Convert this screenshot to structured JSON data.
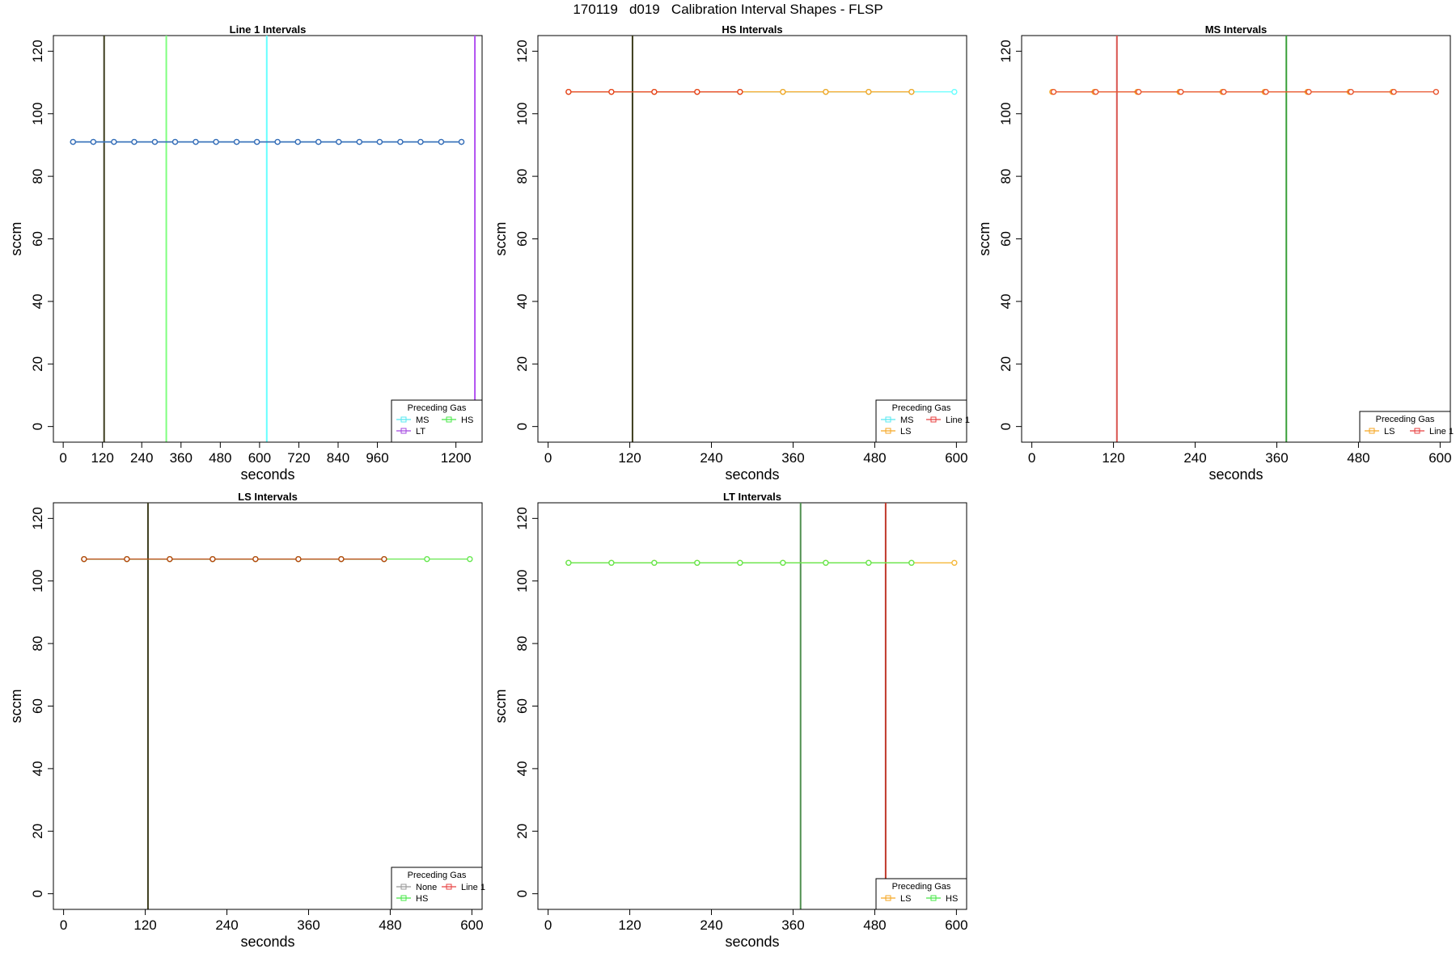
{
  "title": "170119   d019   Calibration Interval Shapes - FLSP",
  "chart_data": [
    {
      "type": "line",
      "title": "Line 1 Intervals",
      "xlabel": "seconds",
      "ylabel": "sccm",
      "xlim": [
        -30,
        1280
      ],
      "ylim": [
        -5,
        125
      ],
      "xticks": [
        0,
        120,
        240,
        360,
        480,
        600,
        720,
        840,
        960,
        1200
      ],
      "yticks": [
        0,
        20,
        40,
        60,
        80,
        100,
        120
      ],
      "vlines": [
        {
          "x": 125,
          "color": "#3d3d1e"
        },
        {
          "x": 315,
          "color": "#7fff7f"
        },
        {
          "x": 622,
          "color": "#66ffff"
        },
        {
          "x": 1258,
          "color": "#b04ff0"
        }
      ],
      "legend": {
        "title": "Preceding Gas",
        "position": "bottom-right",
        "entries": [
          {
            "label": "MS",
            "color": "#56e8f0"
          },
          {
            "label": "HS",
            "color": "#47e847"
          },
          {
            "label": "LT",
            "color": "#a347e0"
          }
        ]
      },
      "series": [
        {
          "name": "MS",
          "color": "#4fb8e0",
          "x": [
            30,
            92,
            155,
            217,
            280,
            342,
            405,
            467,
            530,
            592,
            655,
            717,
            780,
            842,
            905,
            967,
            1030,
            1092,
            1155,
            1217
          ],
          "y": [
            91,
            91,
            91,
            91,
            91,
            91,
            91,
            91,
            91,
            91,
            91,
            91,
            91,
            91,
            91,
            91,
            91,
            91,
            91,
            91
          ]
        },
        {
          "name": "HS",
          "color": "#2f7fc6",
          "x": [
            30,
            92,
            155,
            217,
            280,
            342,
            405,
            467,
            530,
            592,
            655,
            717,
            780,
            842,
            905,
            967,
            1030,
            1092,
            1155,
            1217
          ],
          "y": [
            91,
            91,
            91,
            91,
            91,
            91,
            91,
            91,
            91,
            91,
            91,
            91,
            91,
            91,
            91,
            91,
            91,
            91,
            91,
            91
          ]
        },
        {
          "name": "LT",
          "color": "#3a6fb8",
          "x": [
            30,
            92,
            155,
            217,
            280,
            342,
            405,
            467,
            530,
            592,
            655,
            717,
            780,
            842,
            905,
            967,
            1030,
            1092,
            1155,
            1217
          ],
          "y": [
            91,
            91,
            91,
            91,
            91,
            91,
            91,
            91,
            91,
            91,
            91,
            91,
            91,
            91,
            91,
            91,
            91,
            91,
            91,
            91
          ]
        }
      ]
    },
    {
      "type": "line",
      "title": "HS Intervals",
      "xlabel": "seconds",
      "ylabel": "sccm",
      "xlim": [
        -15,
        615
      ],
      "ylim": [
        -5,
        125
      ],
      "xticks": [
        0,
        120,
        240,
        360,
        480,
        600
      ],
      "yticks": [
        0,
        20,
        40,
        60,
        80,
        100,
        120
      ],
      "vlines": [
        {
          "x": 124,
          "color": "#3d3d1e"
        }
      ],
      "legend": {
        "title": "Preceding Gas",
        "position": "bottom-right",
        "entries": [
          {
            "label": "MS",
            "color": "#56e8f0"
          },
          {
            "label": "Line 1",
            "color": "#e84040"
          },
          {
            "label": "LS",
            "color": "#f5a623"
          }
        ]
      },
      "series": [
        {
          "name": "MS",
          "color": "#66ffff",
          "x": [
            30,
            93,
            156,
            219,
            282,
            345,
            408,
            471,
            534,
            597
          ],
          "y": [
            107,
            107,
            107,
            107,
            107,
            107,
            107,
            107,
            107,
            107
          ]
        },
        {
          "name": "LS",
          "color": "#f5a623",
          "x": [
            30,
            93,
            156,
            219,
            282,
            345,
            408,
            471,
            534
          ],
          "y": [
            107,
            107,
            107,
            107,
            107,
            107,
            107,
            107,
            107
          ]
        },
        {
          "name": "Line 1",
          "color": "#e8421e",
          "x": [
            30,
            93,
            156,
            219,
            282
          ],
          "y": [
            107,
            107,
            107,
            107,
            107
          ]
        }
      ]
    },
    {
      "type": "line",
      "title": "MS Intervals",
      "xlabel": "seconds",
      "ylabel": "sccm",
      "xlim": [
        -15,
        615
      ],
      "ylim": [
        -5,
        125
      ],
      "xticks": [
        0,
        120,
        240,
        360,
        480,
        600
      ],
      "yticks": [
        0,
        20,
        40,
        60,
        80,
        100,
        120
      ],
      "vlines": [
        {
          "x": 125,
          "color": "#d9534f"
        },
        {
          "x": 374,
          "color": "#3aa03a"
        }
      ],
      "legend": {
        "title": "Preceding Gas",
        "position": "bottom-right",
        "entries": [
          {
            "label": "LS",
            "color": "#f5a623"
          },
          {
            "label": "Line 1",
            "color": "#e84040"
          }
        ]
      },
      "series": [
        {
          "name": "LS",
          "color": "#f5a623",
          "x": [
            30,
            92,
            155,
            217,
            280,
            342,
            405,
            467,
            530
          ],
          "y": [
            107,
            107,
            107,
            107,
            107,
            107,
            107,
            107,
            107
          ]
        },
        {
          "name": "Line 1",
          "color": "#e8542e",
          "x": [
            32,
            94,
            157,
            219,
            282,
            344,
            407,
            469,
            532,
            594
          ],
          "y": [
            107,
            107,
            107,
            107,
            107,
            107,
            107,
            107,
            107,
            107
          ]
        }
      ]
    },
    {
      "type": "line",
      "title": "LS Intervals",
      "xlabel": "seconds",
      "ylabel": "sccm",
      "xlim": [
        -15,
        615
      ],
      "ylim": [
        -5,
        125
      ],
      "xticks": [
        0,
        120,
        240,
        360,
        480,
        600
      ],
      "yticks": [
        0,
        20,
        40,
        60,
        80,
        100,
        120
      ],
      "vlines": [
        {
          "x": 124,
          "color": "#3d3d1e"
        }
      ],
      "legend": {
        "title": "Preceding Gas",
        "position": "bottom-right",
        "entries": [
          {
            "label": "None",
            "color": "#999999"
          },
          {
            "label": "Line 1",
            "color": "#e84040"
          },
          {
            "label": "HS",
            "color": "#47e847"
          }
        ]
      },
      "series": [
        {
          "name": "None",
          "color": "#999999",
          "x": [
            30,
            93,
            156,
            219,
            282,
            345,
            408,
            471
          ],
          "y": [
            107,
            107,
            107,
            107,
            107,
            107,
            107,
            107
          ]
        },
        {
          "name": "HS",
          "color": "#66e84f",
          "x": [
            30,
            93,
            156,
            219,
            282,
            345,
            408,
            471,
            534,
            597
          ],
          "y": [
            107,
            107,
            107,
            107,
            107,
            107,
            107,
            107,
            107,
            107
          ]
        },
        {
          "name": "Line 1",
          "color": "#b8480e",
          "x": [
            30,
            93,
            156,
            219,
            282,
            345,
            408,
            471
          ],
          "y": [
            107,
            107,
            107,
            107,
            107,
            107,
            107,
            107
          ]
        }
      ]
    },
    {
      "type": "line",
      "title": "LT Intervals",
      "xlabel": "seconds",
      "ylabel": "sccm",
      "xlim": [
        -15,
        615
      ],
      "ylim": [
        -5,
        125
      ],
      "xticks": [
        0,
        120,
        240,
        360,
        480,
        600
      ],
      "yticks": [
        0,
        20,
        40,
        60,
        80,
        100,
        120
      ],
      "vlines": [
        {
          "x": 371,
          "color": "#4f8f4f"
        },
        {
          "x": 496,
          "color": "#c0392b"
        }
      ],
      "legend": {
        "title": "Preceding Gas",
        "position": "bottom-right",
        "entries": [
          {
            "label": "LS",
            "color": "#f5a623"
          },
          {
            "label": "HS",
            "color": "#47e847"
          }
        ]
      },
      "series": [
        {
          "name": "LS",
          "color": "#f5b83a",
          "x": [
            30,
            93,
            156,
            219,
            282,
            345,
            408,
            471,
            534,
            597
          ],
          "y": [
            105.8,
            105.8,
            105.8,
            105.8,
            105.8,
            105.8,
            105.8,
            105.8,
            105.8,
            105.8
          ]
        },
        {
          "name": "HS",
          "color": "#66e84f",
          "x": [
            30,
            93,
            156,
            219,
            282,
            345,
            408,
            471,
            534
          ],
          "y": [
            105.8,
            105.8,
            105.8,
            105.8,
            105.8,
            105.8,
            105.8,
            105.8,
            105.8
          ]
        }
      ]
    }
  ]
}
